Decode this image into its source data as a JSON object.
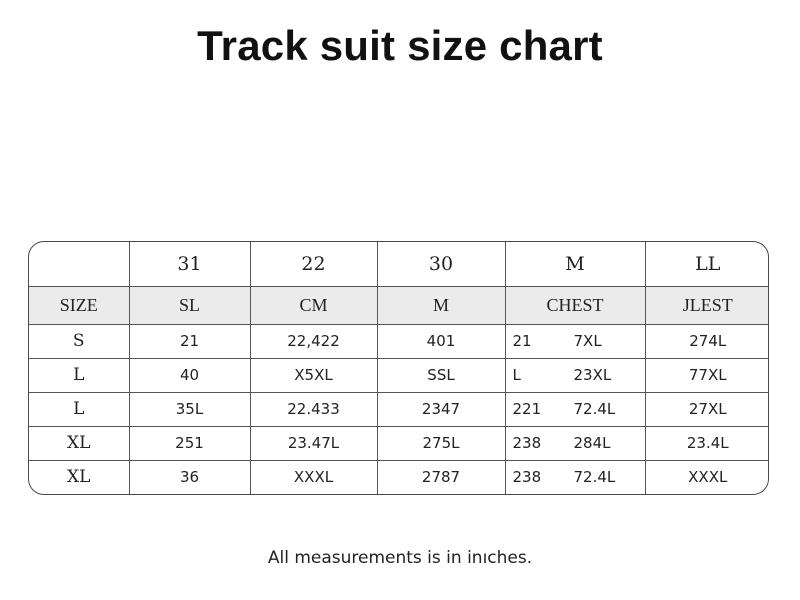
{
  "title": "Track suit size chart",
  "table": {
    "top_row": [
      "",
      "31",
      "22",
      "30",
      "M",
      "LL"
    ],
    "header_row": [
      "SIZE",
      "SL",
      "CM",
      "M",
      "CHEST",
      "JLEST"
    ],
    "rows": [
      {
        "size": "S",
        "c1": "21",
        "c2": "22,422",
        "c3": "401",
        "c4a": "21",
        "c4b": "7XL",
        "c5": "274L"
      },
      {
        "size": "L",
        "c1": "40",
        "c2": "X5XL",
        "c3": "SSL",
        "c4a": "L",
        "c4b": "23XL",
        "c5": "77XL"
      },
      {
        "size": "L",
        "c1": "35L",
        "c2": "22.433",
        "c3": "2347",
        "c4a": "221",
        "c4b": "72.4L",
        "c5": "27XL"
      },
      {
        "size": "XL",
        "c1": "251",
        "c2": "23.47L",
        "c3": "275L",
        "c4a": "238",
        "c4b": "284L",
        "c5": "23.4L"
      },
      {
        "size": "XL",
        "c1": "36",
        "c2": "XXXL",
        "c3": "2787",
        "c4a": "238",
        "c4b": "72.4L",
        "c5": "XXXL"
      }
    ]
  },
  "footnote": "All measurements is in inıches."
}
